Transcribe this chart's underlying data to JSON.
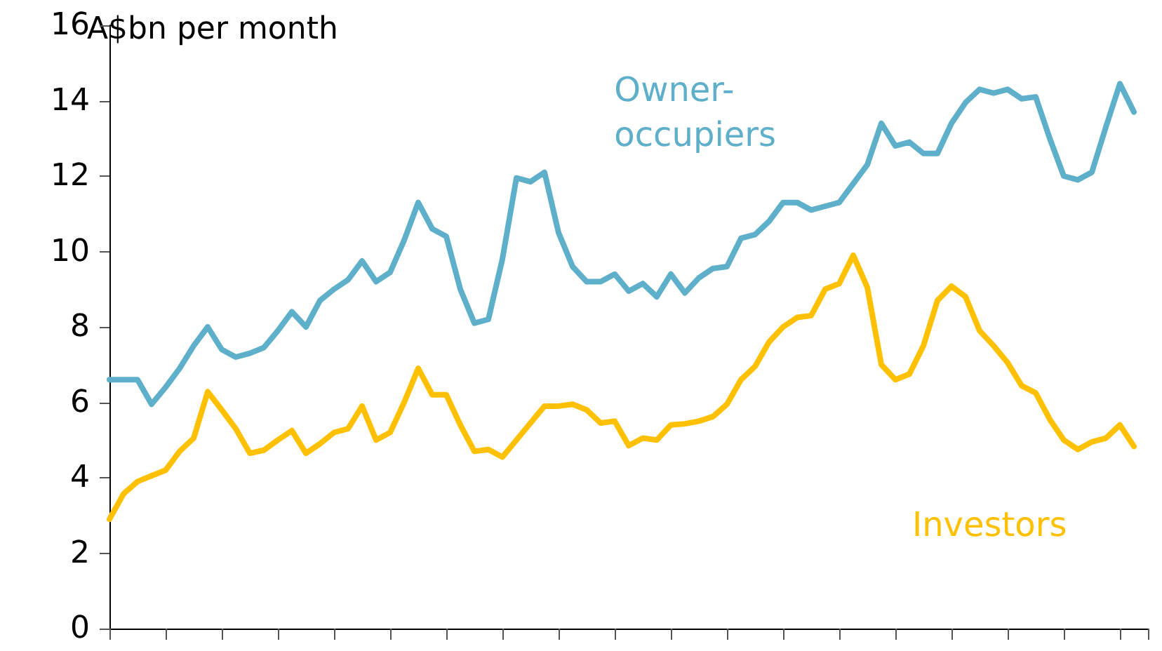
{
  "chart_data": {
    "type": "line",
    "ylabel": "A$bn per month",
    "categories": [
      null,
      null,
      null,
      null,
      null,
      null,
      null,
      null,
      null,
      null,
      null,
      null,
      null,
      null,
      null,
      null,
      null,
      null,
      null,
      null,
      null,
      null,
      null,
      null,
      null,
      null,
      null,
      null,
      null,
      null,
      null,
      null,
      null,
      null,
      null,
      null,
      null,
      null,
      null,
      null,
      null,
      null,
      null,
      null,
      null,
      null,
      null,
      null,
      null,
      null,
      null,
      null,
      null,
      null,
      null,
      null,
      null,
      null,
      null,
      null,
      null,
      null,
      null,
      null,
      null,
      null,
      null,
      null,
      null,
      null,
      null,
      null,
      null,
      null,
      null
    ],
    "series": [
      {
        "name": "Owner-occupiers",
        "color": "#5eafc9",
        "values": [
          6.6,
          6.6,
          6.6,
          5.95,
          6.4,
          6.9,
          7.5,
          8.0,
          7.4,
          7.2,
          7.3,
          7.45,
          7.9,
          8.4,
          8.0,
          8.7,
          9.0,
          9.25,
          9.75,
          9.2,
          9.45,
          10.3,
          11.3,
          10.6,
          10.4,
          9.0,
          8.1,
          8.2,
          9.8,
          11.95,
          11.85,
          12.1,
          10.5,
          9.6,
          9.2,
          9.2,
          9.4,
          8.95,
          9.15,
          8.8,
          9.4,
          8.9,
          9.3,
          9.55,
          9.6,
          10.35,
          10.45,
          10.8,
          11.3,
          11.3,
          11.1,
          11.2,
          11.3,
          11.8,
          12.3,
          13.4,
          12.8,
          12.9,
          12.6,
          12.6,
          13.4,
          13.95,
          14.3,
          14.2,
          14.3,
          14.05,
          14.1,
          13.0,
          12.0,
          11.9,
          12.1,
          13.3,
          14.45,
          13.7,
          null
        ]
      },
      {
        "name": "Investors",
        "color": "#ffc000",
        "values": [
          2.9,
          3.57,
          3.9,
          4.05,
          4.2,
          4.7,
          5.05,
          6.28,
          5.8,
          5.3,
          4.65,
          4.73,
          5.0,
          5.25,
          4.65,
          4.9,
          5.2,
          5.3,
          5.9,
          5.0,
          5.2,
          6.0,
          6.9,
          6.2,
          6.2,
          5.4,
          4.7,
          4.75,
          4.55,
          5.0,
          5.45,
          5.9,
          5.9,
          5.95,
          5.8,
          5.45,
          5.5,
          4.85,
          5.05,
          5.0,
          5.4,
          5.43,
          5.5,
          5.62,
          5.95,
          6.6,
          6.95,
          7.6,
          8.0,
          8.25,
          8.3,
          9.0,
          9.15,
          9.9,
          9.05,
          7.0,
          6.6,
          6.75,
          7.5,
          8.7,
          9.08,
          8.8,
          7.9,
          7.5,
          7.05,
          6.44,
          6.25,
          5.55,
          5.0,
          4.75,
          4.95,
          5.05,
          5.4,
          4.83,
          null
        ]
      }
    ],
    "ylim": [
      0,
      16
    ],
    "yticks": [
      0,
      2,
      4,
      6,
      8,
      10,
      12,
      14,
      16
    ],
    "grid": false,
    "legend": false,
    "marker": "none",
    "line_style": "solid"
  }
}
